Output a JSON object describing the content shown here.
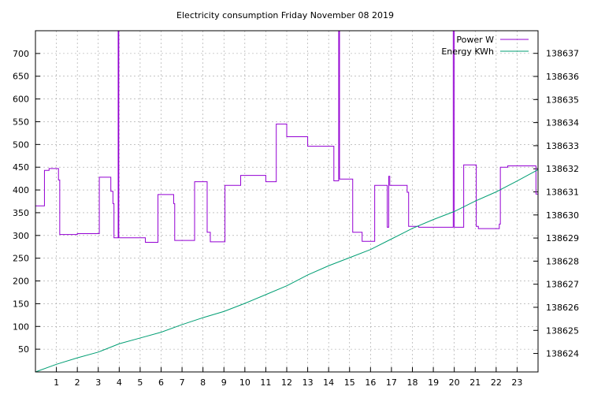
{
  "chart_data": {
    "type": "line",
    "title": "Electricity consumption Friday November 08 2019",
    "xlabel": "",
    "ylabel": "",
    "xlim": [
      0,
      24
    ],
    "ylim": [
      0,
      750
    ],
    "y2lim": [
      138623.2,
      138637.98
    ],
    "grid": true,
    "legend_position": "top-right",
    "x_ticks": [
      1,
      2,
      3,
      4,
      5,
      6,
      7,
      8,
      9,
      10,
      11,
      12,
      13,
      14,
      15,
      16,
      17,
      18,
      19,
      20,
      21,
      22,
      23
    ],
    "y_ticks": [
      50,
      100,
      150,
      200,
      250,
      300,
      350,
      400,
      450,
      500,
      550,
      600,
      650,
      700
    ],
    "y2_ticks": [
      138624,
      138625,
      138626,
      138627,
      138628,
      138629,
      138630,
      138631,
      138632,
      138633,
      138634,
      138635,
      138636,
      138637
    ],
    "series": [
      {
        "name": "Power W",
        "axis": "left",
        "color": "#9400d3",
        "points": [
          [
            0.0,
            365
          ],
          [
            0.43,
            365
          ],
          [
            0.43,
            443
          ],
          [
            0.65,
            443
          ],
          [
            0.65,
            447
          ],
          [
            1.1,
            447
          ],
          [
            1.1,
            422
          ],
          [
            1.16,
            422
          ],
          [
            1.16,
            302
          ],
          [
            2.0,
            302
          ],
          [
            2.0,
            304
          ],
          [
            3.05,
            304
          ],
          [
            3.05,
            428
          ],
          [
            3.6,
            428
          ],
          [
            3.6,
            397
          ],
          [
            3.7,
            397
          ],
          [
            3.7,
            370
          ],
          [
            3.75,
            370
          ],
          [
            3.75,
            295
          ],
          [
            3.95,
            295
          ],
          [
            3.95,
            750
          ],
          [
            3.98,
            750
          ],
          [
            3.98,
            295
          ],
          [
            5.25,
            295
          ],
          [
            5.25,
            285
          ],
          [
            5.85,
            285
          ],
          [
            5.85,
            390
          ],
          [
            6.6,
            390
          ],
          [
            6.6,
            370
          ],
          [
            6.65,
            370
          ],
          [
            6.65,
            289
          ],
          [
            7.6,
            289
          ],
          [
            7.6,
            418
          ],
          [
            8.2,
            418
          ],
          [
            8.2,
            307
          ],
          [
            8.35,
            307
          ],
          [
            8.35,
            286
          ],
          [
            9.05,
            286
          ],
          [
            9.05,
            410
          ],
          [
            9.8,
            410
          ],
          [
            9.8,
            432
          ],
          [
            11.0,
            432
          ],
          [
            11.0,
            418
          ],
          [
            11.5,
            418
          ],
          [
            11.5,
            545
          ],
          [
            12.0,
            545
          ],
          [
            12.0,
            517
          ],
          [
            13.0,
            517
          ],
          [
            13.0,
            496
          ],
          [
            14.25,
            496
          ],
          [
            14.25,
            420
          ],
          [
            14.48,
            420
          ],
          [
            14.48,
            750
          ],
          [
            14.52,
            750
          ],
          [
            14.52,
            424
          ],
          [
            15.15,
            424
          ],
          [
            15.15,
            307
          ],
          [
            15.6,
            307
          ],
          [
            15.6,
            287
          ],
          [
            16.2,
            287
          ],
          [
            16.2,
            410
          ],
          [
            16.8,
            410
          ],
          [
            16.8,
            318
          ],
          [
            16.87,
            318
          ],
          [
            16.87,
            430
          ],
          [
            16.92,
            430
          ],
          [
            16.92,
            410
          ],
          [
            17.75,
            410
          ],
          [
            17.75,
            395
          ],
          [
            17.82,
            395
          ],
          [
            17.82,
            320
          ],
          [
            18.3,
            320
          ],
          [
            18.3,
            318
          ],
          [
            19.95,
            318
          ],
          [
            19.95,
            750
          ],
          [
            20.0,
            750
          ],
          [
            20.0,
            318
          ],
          [
            20.45,
            318
          ],
          [
            20.45,
            455
          ],
          [
            21.05,
            455
          ],
          [
            21.05,
            320
          ],
          [
            21.15,
            320
          ],
          [
            21.15,
            315
          ],
          [
            22.15,
            315
          ],
          [
            22.15,
            325
          ],
          [
            22.2,
            325
          ],
          [
            22.2,
            450
          ],
          [
            22.55,
            450
          ],
          [
            22.55,
            453
          ],
          [
            23.9,
            453
          ],
          [
            23.9,
            391
          ],
          [
            24.0,
            391
          ]
        ]
      },
      {
        "name": "Energy KWh",
        "axis": "right",
        "color": "#009e73",
        "points": [
          [
            0.0,
            138623.2
          ],
          [
            1.0,
            138623.53
          ],
          [
            2.0,
            138623.81
          ],
          [
            3.0,
            138624.06
          ],
          [
            4.0,
            138624.42
          ],
          [
            5.0,
            138624.67
          ],
          [
            6.0,
            138624.92
          ],
          [
            7.0,
            138625.25
          ],
          [
            8.0,
            138625.55
          ],
          [
            9.0,
            138625.82
          ],
          [
            10.0,
            138626.17
          ],
          [
            11.0,
            138626.55
          ],
          [
            12.0,
            138626.93
          ],
          [
            13.0,
            138627.4
          ],
          [
            14.0,
            138627.8
          ],
          [
            15.0,
            138628.15
          ],
          [
            16.0,
            138628.5
          ],
          [
            17.0,
            138628.96
          ],
          [
            18.0,
            138629.42
          ],
          [
            19.0,
            138629.8
          ],
          [
            20.0,
            138630.15
          ],
          [
            21.0,
            138630.6
          ],
          [
            22.0,
            138631.0
          ],
          [
            23.0,
            138631.47
          ],
          [
            24.0,
            138631.96
          ]
        ]
      }
    ]
  }
}
